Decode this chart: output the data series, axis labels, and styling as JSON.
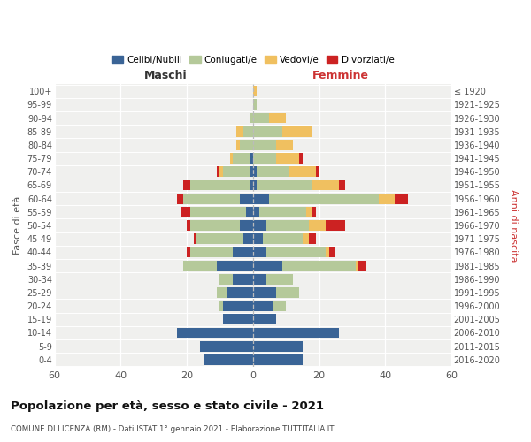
{
  "age_groups": [
    "0-4",
    "5-9",
    "10-14",
    "15-19",
    "20-24",
    "25-29",
    "30-34",
    "35-39",
    "40-44",
    "45-49",
    "50-54",
    "55-59",
    "60-64",
    "65-69",
    "70-74",
    "75-79",
    "80-84",
    "85-89",
    "90-94",
    "95-99",
    "100+"
  ],
  "birth_years": [
    "2016-2020",
    "2011-2015",
    "2006-2010",
    "2001-2005",
    "1996-2000",
    "1991-1995",
    "1986-1990",
    "1981-1985",
    "1976-1980",
    "1971-1975",
    "1966-1970",
    "1961-1965",
    "1956-1960",
    "1951-1955",
    "1946-1950",
    "1941-1945",
    "1936-1940",
    "1931-1935",
    "1926-1930",
    "1921-1925",
    "≤ 1920"
  ],
  "colors": {
    "celibe": "#3a6496",
    "coniugato": "#b5c99a",
    "vedovo": "#f0c060",
    "divorziato": "#cc2222"
  },
  "maschi": {
    "celibe": [
      15,
      16,
      23,
      9,
      9,
      8,
      6,
      11,
      6,
      3,
      4,
      2,
      4,
      1,
      1,
      1,
      0,
      0,
      0,
      0,
      0
    ],
    "coniugato": [
      0,
      0,
      0,
      0,
      1,
      3,
      4,
      10,
      13,
      14,
      15,
      17,
      17,
      18,
      8,
      5,
      4,
      3,
      1,
      0,
      0
    ],
    "vedovo": [
      0,
      0,
      0,
      0,
      0,
      0,
      0,
      0,
      0,
      0,
      0,
      0,
      0,
      0,
      1,
      1,
      1,
      2,
      0,
      0,
      0
    ],
    "divorziato": [
      0,
      0,
      0,
      0,
      0,
      0,
      0,
      0,
      1,
      1,
      1,
      3,
      2,
      2,
      1,
      0,
      0,
      0,
      0,
      0,
      0
    ]
  },
  "femmine": {
    "nubile": [
      15,
      15,
      26,
      7,
      6,
      7,
      4,
      9,
      4,
      3,
      4,
      2,
      5,
      1,
      1,
      0,
      0,
      0,
      0,
      0,
      0
    ],
    "coniugata": [
      0,
      0,
      0,
      0,
      4,
      7,
      8,
      22,
      18,
      12,
      13,
      14,
      33,
      17,
      10,
      7,
      7,
      9,
      5,
      1,
      0
    ],
    "vedova": [
      0,
      0,
      0,
      0,
      0,
      0,
      0,
      1,
      1,
      2,
      5,
      2,
      5,
      8,
      8,
      7,
      5,
      9,
      5,
      0,
      1
    ],
    "divorziata": [
      0,
      0,
      0,
      0,
      0,
      0,
      0,
      2,
      2,
      2,
      6,
      1,
      4,
      2,
      1,
      1,
      0,
      0,
      0,
      0,
      0
    ]
  },
  "xlim": 60,
  "title": "Popolazione per età, sesso e stato civile - 2021",
  "subtitle": "COMUNE DI LICENZA (RM) - Dati ISTAT 1° gennaio 2021 - Elaborazione TUTTITALIA.IT",
  "xlabel_left": "Maschi",
  "xlabel_right": "Femmine",
  "ylabel_left": "Fasce di età",
  "ylabel_right": "Anni di nascita",
  "legend_labels": [
    "Celibi/Nubili",
    "Coniugati/e",
    "Vedovi/e",
    "Divorziati/e"
  ]
}
